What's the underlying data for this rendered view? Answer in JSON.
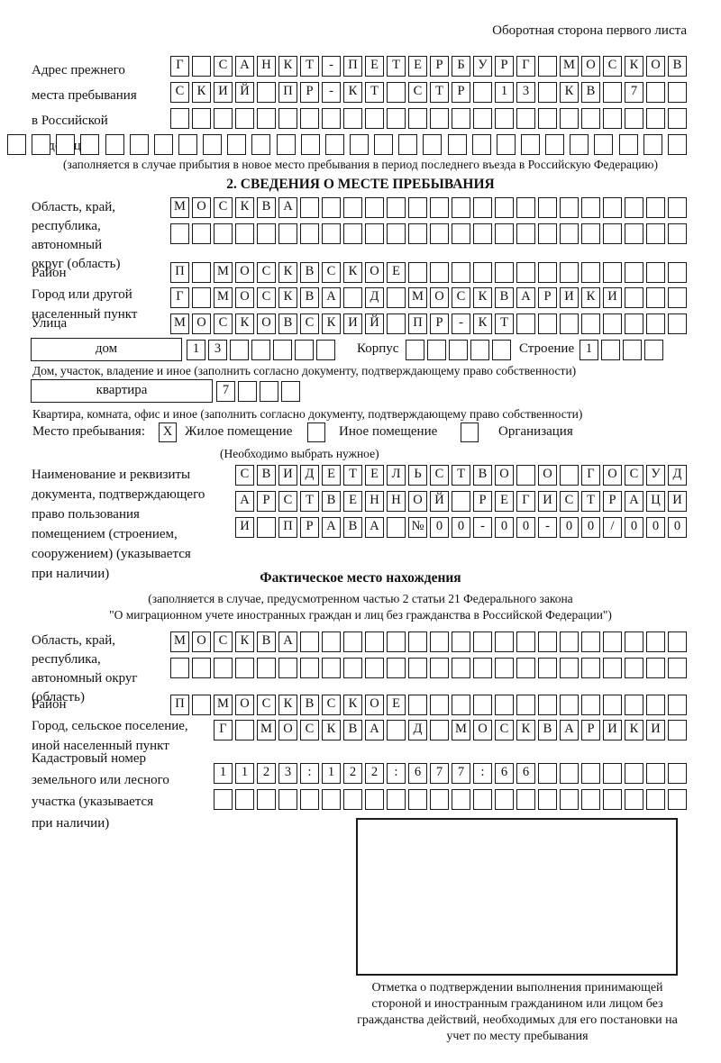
{
  "header": {
    "back_side_note": "Оборотная сторона первого листа"
  },
  "prev_address": {
    "label": "Адрес прежнего\nместа пребывания\nв Российской\nФедерации",
    "rows": [
      [
        "Г",
        "",
        "С",
        "А",
        "Н",
        "К",
        "Т",
        "-",
        "П",
        "Е",
        "Т",
        "Е",
        "Р",
        "Б",
        "У",
        "Р",
        "Г",
        "",
        "М",
        "О",
        "С",
        "К",
        "О",
        "В"
      ],
      [
        "С",
        "К",
        "И",
        "Й",
        "",
        "П",
        "Р",
        "-",
        "К",
        "Т",
        "",
        "С",
        "Т",
        "Р",
        "",
        "1",
        "3",
        "",
        "К",
        "В",
        "",
        "7",
        "",
        ""
      ],
      [
        "",
        "",
        "",
        "",
        "",
        "",
        "",
        "",
        "",
        "",
        "",
        "",
        "",
        "",
        "",
        "",
        "",
        "",
        "",
        "",
        "",
        "",
        "",
        ""
      ],
      [
        "",
        "",
        "",
        "",
        "",
        "",
        "",
        "",
        "",
        "",
        "",
        "",
        "",
        "",
        "",
        "",
        "",
        "",
        "",
        "",
        "",
        "",
        "",
        "",
        "",
        "",
        "",
        ""
      ]
    ],
    "note": "(заполняется в случае прибытия в новое место пребывания в период последнего въезда в Российскую Федерацию)"
  },
  "section2": {
    "title": "2. СВЕДЕНИЯ О МЕСТЕ ПРЕБЫВАНИЯ",
    "region": {
      "label": "Область, край,\nреспублика,\nавтономный\nокруг (область)",
      "rows": [
        [
          "М",
          "О",
          "С",
          "К",
          "В",
          "А",
          "",
          "",
          "",
          "",
          "",
          "",
          "",
          "",
          "",
          "",
          "",
          "",
          "",
          "",
          "",
          "",
          "",
          ""
        ],
        [
          "",
          "",
          "",
          "",
          "",
          "",
          "",
          "",
          "",
          "",
          "",
          "",
          "",
          "",
          "",
          "",
          "",
          "",
          "",
          "",
          "",
          "",
          "",
          ""
        ]
      ]
    },
    "district": {
      "label": "Район",
      "cells": [
        "П",
        "",
        "М",
        "О",
        "С",
        "К",
        "В",
        "С",
        "К",
        "О",
        "Е",
        "",
        "",
        "",
        "",
        "",
        "",
        "",
        "",
        "",
        "",
        "",
        "",
        ""
      ]
    },
    "city": {
      "label": "Город или другой\nнаселенный пункт",
      "cells": [
        "Г",
        "",
        "М",
        "О",
        "С",
        "К",
        "В",
        "А",
        "",
        "Д",
        "",
        "М",
        "О",
        "С",
        "К",
        "В",
        "А",
        "Р",
        "И",
        "К",
        "И",
        "",
        "",
        ""
      ]
    },
    "street": {
      "label": "Улица",
      "cells": [
        "М",
        "О",
        "С",
        "К",
        "О",
        "В",
        "С",
        "К",
        "И",
        "Й",
        "",
        "П",
        "Р",
        "-",
        "К",
        "Т",
        "",
        "",
        "",
        "",
        "",
        "",
        "",
        ""
      ]
    },
    "house": {
      "label": "дом",
      "cells": [
        "1",
        "3",
        "",
        "",
        "",
        "",
        ""
      ],
      "korpus_label": "Корпус",
      "korpus_cells": [
        "",
        "",
        "",
        "",
        ""
      ],
      "stroenie_label": "Строение",
      "stroenie_cells": [
        "1",
        "",
        "",
        ""
      ],
      "note": "Дом, участок, владение и иное (заполнить согласно документу, подтверждающему право собственности)"
    },
    "apartment": {
      "label": "квартира",
      "cells": [
        "7",
        "",
        "",
        ""
      ],
      "note": "Квартира, комната, офис и иное (заполнить согласно документу, подтверждающему право собственности)"
    },
    "stay_type": {
      "label": "Место пребывания:",
      "options": [
        {
          "label": "Жилое помещение",
          "mark": "Х"
        },
        {
          "label": "Иное помещение",
          "mark": ""
        },
        {
          "label": "Организация",
          "mark": ""
        }
      ],
      "note": "(Необходимо выбрать нужное)"
    },
    "document": {
      "label": "Наименование и реквизиты\nдокумента, подтверждающего\nправо пользования\nпомещением (строением,\nсооружением) (указывается\nпри наличии)",
      "rows": [
        [
          "С",
          "В",
          "И",
          "Д",
          "Е",
          "Т",
          "Е",
          "Л",
          "Ь",
          "С",
          "Т",
          "В",
          "О",
          "",
          "О",
          "",
          "Г",
          "О",
          "С",
          "У",
          "Д"
        ],
        [
          "А",
          "Р",
          "С",
          "Т",
          "В",
          "Е",
          "Н",
          "Н",
          "О",
          "Й",
          "",
          "Р",
          "Е",
          "Г",
          "И",
          "С",
          "Т",
          "Р",
          "А",
          "Ц",
          "И"
        ],
        [
          "И",
          "",
          "П",
          "Р",
          "А",
          "В",
          "А",
          "",
          "№",
          "0",
          "0",
          "-",
          "0",
          "0",
          "-",
          "0",
          "0",
          "/",
          "0",
          "0",
          "0"
        ]
      ]
    }
  },
  "actual_location": {
    "title": "Фактическое место нахождения",
    "note_line1": "(заполняется в случае, предусмотренном частью 2 статьи 21 Федерального закона",
    "note_line2": "\"О миграционном учете иностранных граждан и лиц без гражданства в Российской Федерации\")",
    "region": {
      "label": "Область, край,\nреспублика,\nавтономный округ\n(область)",
      "rows": [
        [
          "М",
          "О",
          "С",
          "К",
          "В",
          "А",
          "",
          "",
          "",
          "",
          "",
          "",
          "",
          "",
          "",
          "",
          "",
          "",
          "",
          "",
          "",
          "",
          "",
          ""
        ],
        [
          "",
          "",
          "",
          "",
          "",
          "",
          "",
          "",
          "",
          "",
          "",
          "",
          "",
          "",
          "",
          "",
          "",
          "",
          "",
          "",
          "",
          "",
          "",
          ""
        ]
      ]
    },
    "district": {
      "label": "Район",
      "cells": [
        "П",
        "",
        "М",
        "О",
        "С",
        "К",
        "В",
        "С",
        "К",
        "О",
        "Е",
        "",
        "",
        "",
        "",
        "",
        "",
        "",
        "",
        "",
        "",
        "",
        "",
        ""
      ]
    },
    "city": {
      "label": "Город, сельское поселение,\nиной населенный пункт",
      "cells": [
        "Г",
        "",
        "М",
        "О",
        "С",
        "К",
        "В",
        "А",
        "",
        "Д",
        "",
        "М",
        "О",
        "С",
        "К",
        "В",
        "А",
        "Р",
        "И",
        "К",
        "И",
        ""
      ]
    },
    "cadastral": {
      "label": "Кадастровый номер\nземельного или лесного\nучастка (указывается\nпри наличии)",
      "rows": [
        [
          "1",
          "1",
          "2",
          "3",
          ":",
          "1",
          "2",
          "2",
          ":",
          "6",
          "7",
          "7",
          ":",
          "6",
          "6",
          "",
          "",
          "",
          "",
          "",
          "",
          ""
        ],
        [
          "",
          "",
          "",
          "",
          "",
          "",
          "",
          "",
          "",
          "",
          "",
          "",
          "",
          "",
          "",
          "",
          "",
          "",
          "",
          "",
          "",
          ""
        ]
      ]
    },
    "stamp_caption": "Отметка о подтверждении выполнения принимающей стороной и иностранным гражданином или лицом без гражданства действий, необходимых для его постановки на учет по месту пребывания"
  }
}
